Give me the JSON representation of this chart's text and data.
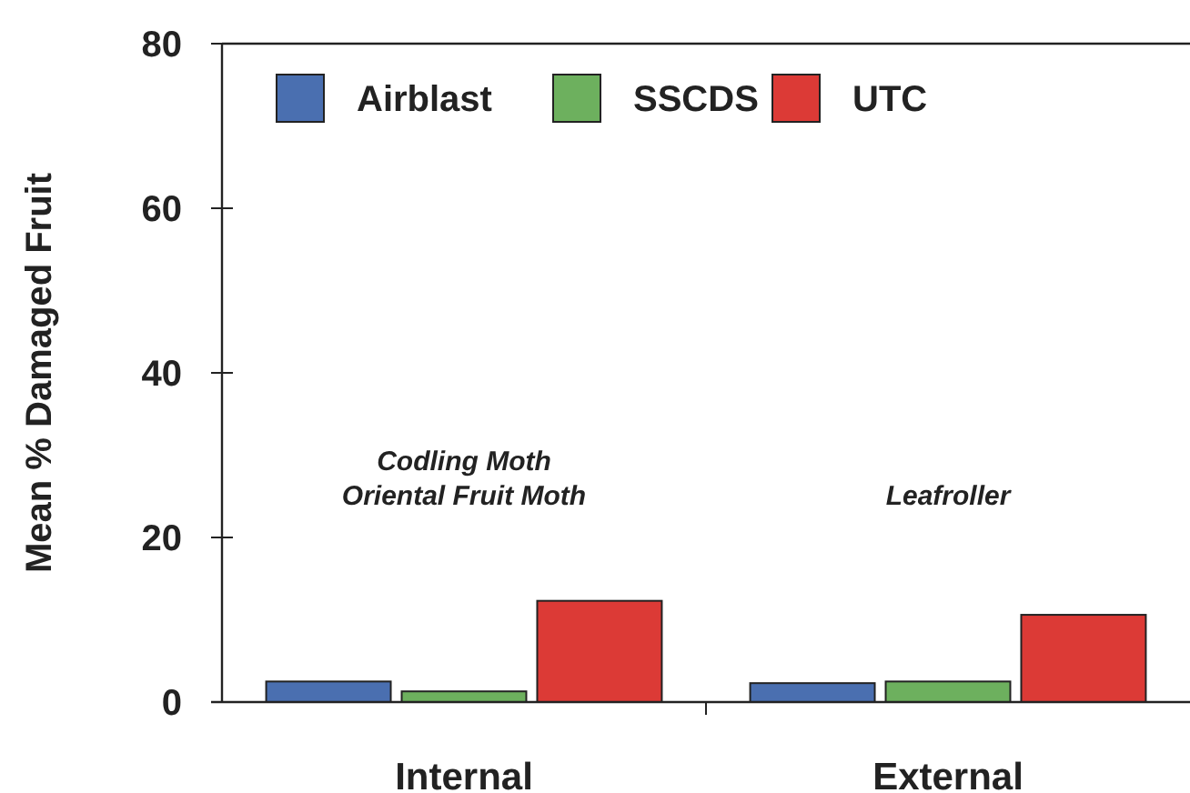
{
  "chart_data": {
    "type": "bar",
    "ylabel": "Mean % Damaged Fruit",
    "categories": [
      "Internal",
      "External"
    ],
    "series": [
      {
        "name": "Airblast",
        "color": "#4a6fb0",
        "values": [
          2.5,
          2.3
        ]
      },
      {
        "name": "SSCDS",
        "color": "#6db05e",
        "values": [
          1.3,
          2.5
        ]
      },
      {
        "name": "UTC",
        "color": "#dc3a36",
        "values": [
          12.3,
          10.6
        ]
      }
    ],
    "ylim": [
      0,
      80
    ],
    "yticks": [
      0,
      20,
      40,
      60,
      80
    ],
    "grid": false,
    "legend": "top left",
    "annotations": [
      "Codling Moth\nOriental Fruit Moth",
      "Leafroller"
    ]
  }
}
